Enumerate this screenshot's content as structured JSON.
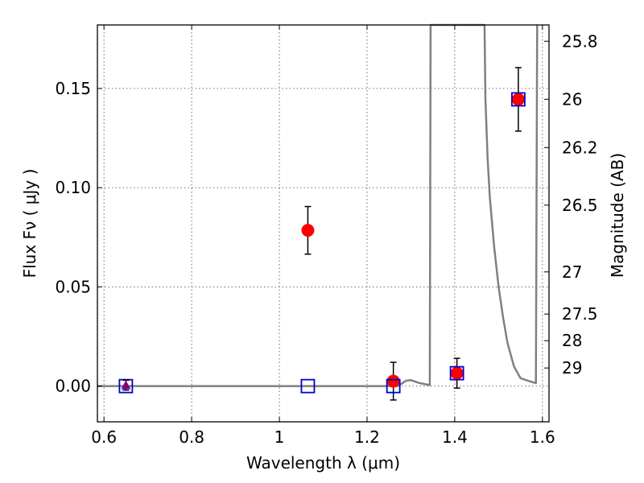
{
  "chart_data": {
    "type": "scatter",
    "xlabel": "Wavelength  λ (μm)",
    "ylabel": "Flux  Fν  ( μJy )",
    "ylabel_right": "Magnitude (AB)",
    "xlim": [
      0.585,
      1.615
    ],
    "ylim": [
      -0.018,
      0.182
    ],
    "grid": true,
    "x_ticks": [
      {
        "value": 0.6,
        "label": "0.6"
      },
      {
        "value": 0.8,
        "label": "0.8"
      },
      {
        "value": 1.0,
        "label": "1"
      },
      {
        "value": 1.2,
        "label": "1.2"
      },
      {
        "value": 1.4,
        "label": "1.4"
      },
      {
        "value": 1.6,
        "label": "1.6"
      }
    ],
    "y_ticks": [
      {
        "value": 0.0,
        "label": "0.00"
      },
      {
        "value": 0.05,
        "label": "0.05"
      },
      {
        "value": 0.1,
        "label": "0.10"
      },
      {
        "value": 0.15,
        "label": "0.15"
      }
    ],
    "magnitude_ticks": [
      {
        "value": 25.8,
        "label": "25.8"
      },
      {
        "value": 26.0,
        "label": "26"
      },
      {
        "value": 26.2,
        "label": "26.2"
      },
      {
        "value": 26.5,
        "label": "26.5"
      },
      {
        "value": 27.0,
        "label": "27"
      },
      {
        "value": 27.5,
        "label": "27.5"
      },
      {
        "value": 28.0,
        "label": "28"
      },
      {
        "value": 29.0,
        "label": "29"
      }
    ],
    "series": [
      {
        "marker": "circle",
        "color": "#ff0000",
        "points": [
          {
            "x": 1.065,
            "y": 0.0785,
            "err": 0.012
          },
          {
            "x": 1.26,
            "y": 0.0025,
            "err": 0.0095
          },
          {
            "x": 1.405,
            "y": 0.0065,
            "err": 0.0075
          },
          {
            "x": 1.545,
            "y": 0.1445,
            "err": 0.016
          }
        ]
      },
      {
        "marker": "open-square",
        "color": "#0000cc",
        "points": [
          {
            "x": 0.65,
            "y": 0.0
          },
          {
            "x": 1.065,
            "y": 0.0
          },
          {
            "x": 1.26,
            "y": 0.0
          },
          {
            "x": 1.405,
            "y": 0.0065
          },
          {
            "x": 1.545,
            "y": 0.1445
          }
        ]
      },
      {
        "marker": "triangle",
        "color": "#800080",
        "points": [
          {
            "x": 0.65,
            "y": 0.0005,
            "err": 0.0025
          }
        ]
      },
      {
        "marker": "line",
        "color": "#808080",
        "points": [
          {
            "x": 0.585,
            "y": 0.0
          },
          {
            "x": 1.27,
            "y": 0.0
          },
          {
            "x": 1.29,
            "y": 0.0028
          },
          {
            "x": 1.3,
            "y": 0.003
          },
          {
            "x": 1.32,
            "y": 0.0015
          },
          {
            "x": 1.343,
            "y": 0.0005
          },
          {
            "x": 1.345,
            "y": 0.182
          },
          {
            "x": 1.468,
            "y": 0.182
          },
          {
            "x": 1.47,
            "y": 0.145
          },
          {
            "x": 1.475,
            "y": 0.115
          },
          {
            "x": 1.48,
            "y": 0.095
          },
          {
            "x": 1.49,
            "y": 0.07
          },
          {
            "x": 1.5,
            "y": 0.05
          },
          {
            "x": 1.51,
            "y": 0.035
          },
          {
            "x": 1.52,
            "y": 0.022
          },
          {
            "x": 1.535,
            "y": 0.01
          },
          {
            "x": 1.55,
            "y": 0.004
          },
          {
            "x": 1.57,
            "y": 0.0025
          },
          {
            "x": 1.585,
            "y": 0.0015
          },
          {
            "x": 1.588,
            "y": 0.182
          }
        ]
      }
    ]
  }
}
